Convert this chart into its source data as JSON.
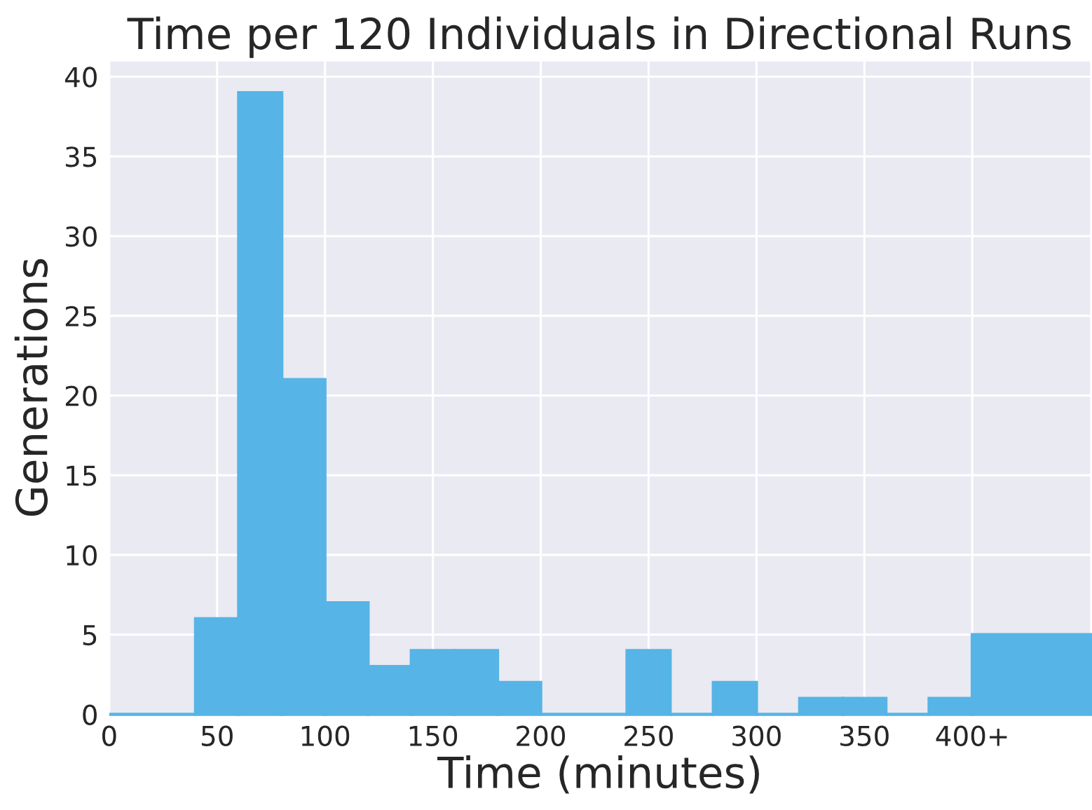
{
  "chart_data": {
    "type": "histogram",
    "title": "Time per 120 Individuals in Directional Runs",
    "xlabel": "Time (minutes)",
    "ylabel": "Generations",
    "bins": [
      0,
      40,
      60,
      80,
      100,
      120,
      140,
      160,
      180,
      200,
      240,
      260,
      280,
      300,
      320,
      340,
      360,
      380,
      400,
      455
    ],
    "values": [
      0,
      6,
      39,
      21,
      7,
      3,
      4,
      4,
      2,
      0,
      4,
      0,
      2,
      0,
      1,
      1,
      0,
      1,
      5
    ],
    "color": "#56b4e6",
    "xlim": [
      0,
      455
    ],
    "xticks": [
      0,
      50,
      100,
      150,
      200,
      250,
      300,
      350,
      {
        "value": 400,
        "label": "400+"
      }
    ],
    "ylim": [
      0,
      41
    ],
    "yticks": [
      0,
      5,
      10,
      15,
      20,
      25,
      30,
      35,
      40
    ],
    "grid": true
  }
}
